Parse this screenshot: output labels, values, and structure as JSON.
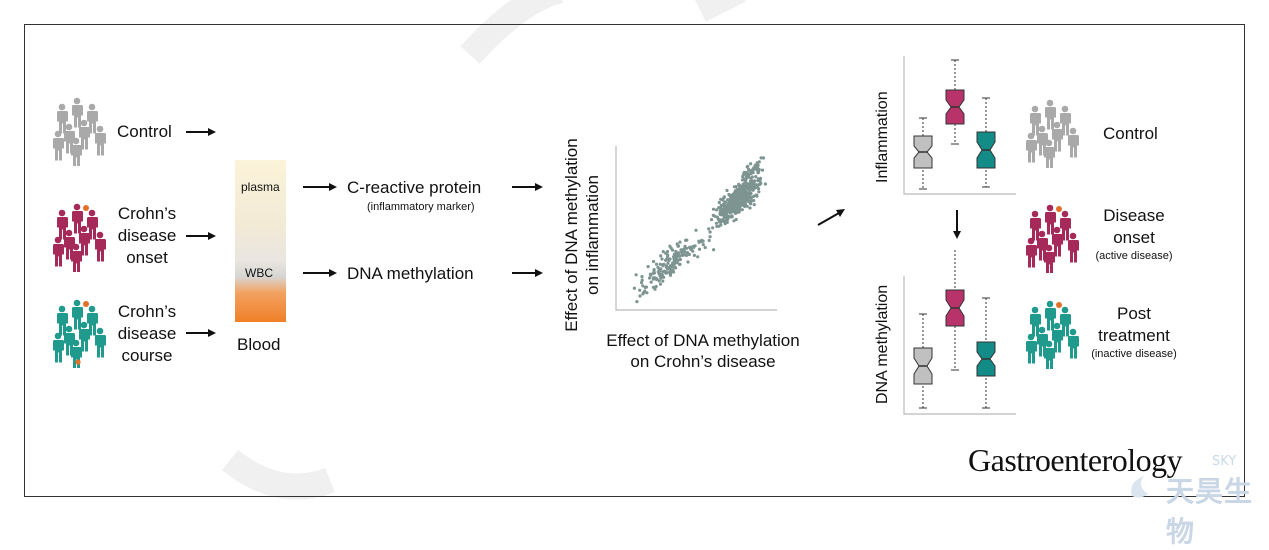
{
  "groups": {
    "control": "Control",
    "onset": [
      "Crohn’s",
      "disease",
      "onset"
    ],
    "course": [
      "Crohn’s",
      "disease",
      "course"
    ]
  },
  "blood": {
    "plasma": "plasma",
    "wbc": "WBC",
    "label": "Blood"
  },
  "measures": {
    "crp": "C-reactive protein",
    "crp_note": "(inflammatory marker)",
    "dna": "DNA methylation"
  },
  "scatter": {
    "ylabel_line1": "Effect of DNA methylation",
    "ylabel_line2": "on inflammation",
    "xlabel_line1": "Effect of DNA methylation",
    "xlabel_line2": "on Crohn’s disease"
  },
  "boxplots": {
    "top_ylabel": "Inflammation",
    "bottom_ylabel": "DNA methylation"
  },
  "outcomes": {
    "control": "Control",
    "onset_line1": "Disease",
    "onset_line2": "onset",
    "onset_note": "(active disease)",
    "post_line1": "Post",
    "post_line2": "treatment",
    "post_note": "(inactive disease)"
  },
  "journal": "Gastroenterology",
  "watermark": {
    "latin": "SKY",
    "cjk": "天昊生物"
  },
  "colors": {
    "control": "#a9a9a9",
    "crohn": "#a52a5a",
    "teal": "#1f9a8c",
    "scatter": "#7d9490",
    "box_gray": "#c0c0c0",
    "box_red": "#b8336a",
    "box_teal": "#138b86"
  }
}
